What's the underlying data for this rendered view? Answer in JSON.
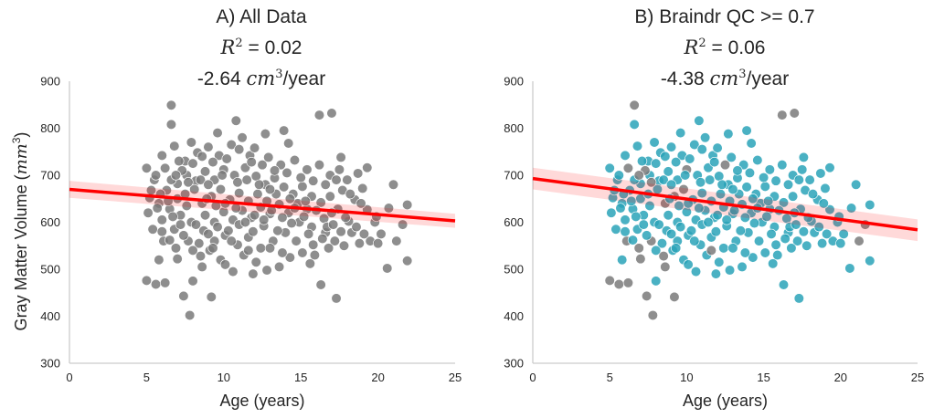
{
  "chart_data": [
    {
      "type": "scatter",
      "title_lines": [
        "A) All Data",
        "= 0.02",
        "-2.64",
        "/year"
      ],
      "r2_symbol": "R",
      "r2_exp": "2",
      "unit_symbol": "cm",
      "unit_exp": "3",
      "xlabel": "Age (years)",
      "ylabel_text": "Gray Matter Volume (",
      "ylabel_unit": "mm",
      "ylabel_exp": "3",
      "ylabel_close": ")",
      "xlim": [
        0,
        25
      ],
      "ylim": [
        300,
        900
      ],
      "xticks": [
        "0",
        "5",
        "10",
        "15",
        "20",
        "25"
      ],
      "yticks": [
        "300",
        "400",
        "500",
        "600",
        "700",
        "800",
        "900"
      ],
      "grid": false,
      "fit": {
        "x": [
          0,
          25
        ],
        "y": [
          670,
          603
        ],
        "ci_lo": [
          652,
          588
        ],
        "ci_hi": [
          688,
          618
        ],
        "color": "#ff0000"
      },
      "colors": {
        "all": "#7a7a7a",
        "pass": "#7a7a7a"
      }
    },
    {
      "type": "scatter",
      "title_lines": [
        "B) Braindr QC >= 0.7",
        "= 0.06",
        "-4.38",
        "/year"
      ],
      "r2_symbol": "R",
      "r2_exp": "2",
      "unit_symbol": "cm",
      "unit_exp": "3",
      "xlabel": "Age (years)",
      "ylabel_text": "",
      "xlim": [
        0,
        25
      ],
      "ylim": [
        300,
        900
      ],
      "xticks": [
        "0",
        "5",
        "10",
        "15",
        "20",
        "25"
      ],
      "yticks": [
        "300",
        "400",
        "500",
        "600",
        "700",
        "800",
        "900"
      ],
      "grid": false,
      "fit": {
        "x": [
          0,
          25
        ],
        "y": [
          693,
          584
        ],
        "ci_lo": [
          670,
          560
        ],
        "ci_hi": [
          716,
          606
        ],
        "color": "#ff0000"
      },
      "colors": {
        "all": "#7a7a7a",
        "pass": "#2aa3b8"
      },
      "qc_threshold": 0.7
    }
  ],
  "points": [
    {
      "x": 6.6,
      "y": 849
    },
    {
      "x": 6.6,
      "y": 808
    },
    {
      "x": 7.8,
      "y": 402
    },
    {
      "x": 7.4,
      "y": 443
    },
    {
      "x": 9.2,
      "y": 441
    },
    {
      "x": 5.0,
      "y": 476
    },
    {
      "x": 5.6,
      "y": 468
    },
    {
      "x": 6.2,
      "y": 471
    },
    {
      "x": 8.0,
      "y": 475
    },
    {
      "x": 10.8,
      "y": 816
    },
    {
      "x": 16.2,
      "y": 828
    },
    {
      "x": 17.0,
      "y": 832
    },
    {
      "x": 17.3,
      "y": 438
    },
    {
      "x": 16.3,
      "y": 467
    },
    {
      "x": 20.6,
      "y": 502
    },
    {
      "x": 21.9,
      "y": 518
    },
    {
      "x": 21.2,
      "y": 560
    },
    {
      "x": 21.6,
      "y": 595
    },
    {
      "x": 20.7,
      "y": 630
    },
    {
      "x": 21.0,
      "y": 680
    },
    {
      "x": 21.9,
      "y": 637
    },
    {
      "x": 13.9,
      "y": 795
    },
    {
      "x": 12.7,
      "y": 788
    },
    {
      "x": 9.6,
      "y": 790
    },
    {
      "x": 11.7,
      "y": 742
    },
    {
      "x": 14.2,
      "y": 768
    },
    {
      "x": 17.6,
      "y": 738
    },
    {
      "x": 19.3,
      "y": 716
    },
    {
      "x": 18.7,
      "y": 704
    },
    {
      "x": 17.5,
      "y": 712
    },
    {
      "x": 18.0,
      "y": 690
    },
    {
      "x": 19.0,
      "y": 672
    },
    {
      "x": 19.8,
      "y": 600
    },
    {
      "x": 20.2,
      "y": 575
    },
    {
      "x": 18.8,
      "y": 555
    },
    {
      "x": 18.1,
      "y": 602
    },
    {
      "x": 17.2,
      "y": 560
    },
    {
      "x": 16.6,
      "y": 578
    },
    {
      "x": 15.8,
      "y": 552
    },
    {
      "x": 15.1,
      "y": 535
    },
    {
      "x": 14.3,
      "y": 525
    },
    {
      "x": 13.6,
      "y": 505
    },
    {
      "x": 12.8,
      "y": 498
    },
    {
      "x": 12.1,
      "y": 515
    },
    {
      "x": 11.3,
      "y": 530
    },
    {
      "x": 10.6,
      "y": 495
    },
    {
      "x": 9.8,
      "y": 520
    },
    {
      "x": 9.1,
      "y": 540
    },
    {
      "x": 8.5,
      "y": 528
    },
    {
      "x": 7.7,
      "y": 560
    },
    {
      "x": 6.9,
      "y": 545
    },
    {
      "x": 6.1,
      "y": 560
    },
    {
      "x": 5.4,
      "y": 585
    },
    {
      "x": 5.1,
      "y": 620
    },
    {
      "x": 5.2,
      "y": 652
    },
    {
      "x": 5.5,
      "y": 690
    },
    {
      "x": 5.0,
      "y": 715
    },
    {
      "x": 6.0,
      "y": 742
    },
    {
      "x": 6.8,
      "y": 762
    },
    {
      "x": 7.5,
      "y": 730
    },
    {
      "x": 8.3,
      "y": 748
    },
    {
      "x": 9.0,
      "y": 760
    },
    {
      "x": 9.7,
      "y": 742
    },
    {
      "x": 10.5,
      "y": 765
    },
    {
      "x": 11.2,
      "y": 780
    },
    {
      "x": 12.0,
      "y": 758
    },
    {
      "x": 12.9,
      "y": 738
    },
    {
      "x": 13.7,
      "y": 722
    },
    {
      "x": 14.6,
      "y": 732
    },
    {
      "x": 15.4,
      "y": 712
    },
    {
      "x": 16.2,
      "y": 722
    },
    {
      "x": 16.9,
      "y": 700
    },
    {
      "x": 17.7,
      "y": 668
    },
    {
      "x": 18.5,
      "y": 648
    },
    {
      "x": 19.3,
      "y": 627
    },
    {
      "x": 19.9,
      "y": 612
    },
    {
      "x": 18.3,
      "y": 578
    },
    {
      "x": 17.4,
      "y": 628
    },
    {
      "x": 16.5,
      "y": 608
    },
    {
      "x": 15.7,
      "y": 590
    },
    {
      "x": 14.9,
      "y": 600
    },
    {
      "x": 14.0,
      "y": 578
    },
    {
      "x": 13.2,
      "y": 560
    },
    {
      "x": 12.4,
      "y": 545
    },
    {
      "x": 11.6,
      "y": 568
    },
    {
      "x": 10.9,
      "y": 552
    },
    {
      "x": 10.1,
      "y": 572
    },
    {
      "x": 9.4,
      "y": 560
    },
    {
      "x": 8.7,
      "y": 582
    },
    {
      "x": 7.9,
      "y": 600
    },
    {
      "x": 7.2,
      "y": 615
    },
    {
      "x": 6.5,
      "y": 628
    },
    {
      "x": 5.8,
      "y": 640
    },
    {
      "x": 6.3,
      "y": 668
    },
    {
      "x": 7.0,
      "y": 682
    },
    {
      "x": 7.6,
      "y": 700
    },
    {
      "x": 8.2,
      "y": 688
    },
    {
      "x": 8.8,
      "y": 708
    },
    {
      "x": 9.4,
      "y": 690
    },
    {
      "x": 10.0,
      "y": 712
    },
    {
      "x": 10.7,
      "y": 700
    },
    {
      "x": 11.4,
      "y": 716
    },
    {
      "x": 12.1,
      "y": 698
    },
    {
      "x": 12.7,
      "y": 680
    },
    {
      "x": 13.3,
      "y": 694
    },
    {
      "x": 13.9,
      "y": 675
    },
    {
      "x": 14.5,
      "y": 660
    },
    {
      "x": 15.1,
      "y": 676
    },
    {
      "x": 15.7,
      "y": 655
    },
    {
      "x": 16.3,
      "y": 642
    },
    {
      "x": 16.9,
      "y": 655
    },
    {
      "x": 15.4,
      "y": 628
    },
    {
      "x": 14.8,
      "y": 640
    },
    {
      "x": 14.2,
      "y": 620
    },
    {
      "x": 13.6,
      "y": 638
    },
    {
      "x": 13.0,
      "y": 618
    },
    {
      "x": 12.4,
      "y": 632
    },
    {
      "x": 11.8,
      "y": 610
    },
    {
      "x": 11.2,
      "y": 625
    },
    {
      "x": 10.6,
      "y": 605
    },
    {
      "x": 10.0,
      "y": 622
    },
    {
      "x": 9.4,
      "y": 600
    },
    {
      "x": 8.8,
      "y": 615
    },
    {
      "x": 8.2,
      "y": 595
    },
    {
      "x": 7.6,
      "y": 635
    },
    {
      "x": 7.0,
      "y": 650
    },
    {
      "x": 6.6,
      "y": 690
    },
    {
      "x": 7.3,
      "y": 710
    },
    {
      "x": 8.0,
      "y": 725
    },
    {
      "x": 8.6,
      "y": 640
    },
    {
      "x": 9.2,
      "y": 655
    },
    {
      "x": 9.8,
      "y": 670
    },
    {
      "x": 10.4,
      "y": 648
    },
    {
      "x": 11.0,
      "y": 662
    },
    {
      "x": 11.6,
      "y": 645
    },
    {
      "x": 12.2,
      "y": 660
    },
    {
      "x": 12.8,
      "y": 645
    },
    {
      "x": 13.4,
      "y": 660
    },
    {
      "x": 6.0,
      "y": 605
    },
    {
      "x": 6.8,
      "y": 585
    },
    {
      "x": 7.4,
      "y": 572
    },
    {
      "x": 8.4,
      "y": 555
    },
    {
      "x": 9.0,
      "y": 575
    },
    {
      "x": 9.6,
      "y": 590
    },
    {
      "x": 10.3,
      "y": 582
    },
    {
      "x": 11.0,
      "y": 595
    },
    {
      "x": 11.9,
      "y": 580
    },
    {
      "x": 12.6,
      "y": 592
    },
    {
      "x": 13.5,
      "y": 582
    },
    {
      "x": 14.4,
      "y": 598
    },
    {
      "x": 15.2,
      "y": 612
    },
    {
      "x": 16.0,
      "y": 625
    },
    {
      "x": 16.7,
      "y": 590
    },
    {
      "x": 17.8,
      "y": 550
    },
    {
      "x": 18.6,
      "y": 590
    },
    {
      "x": 19.5,
      "y": 560
    },
    {
      "x": 7.1,
      "y": 730
    },
    {
      "x": 7.9,
      "y": 770
    },
    {
      "x": 8.6,
      "y": 740
    },
    {
      "x": 9.3,
      "y": 728
    },
    {
      "x": 10.2,
      "y": 735
    },
    {
      "x": 11.0,
      "y": 755
    },
    {
      "x": 11.8,
      "y": 728
    },
    {
      "x": 12.5,
      "y": 722
    },
    {
      "x": 13.3,
      "y": 710
    },
    {
      "x": 14.1,
      "y": 705
    },
    {
      "x": 15.0,
      "y": 695
    },
    {
      "x": 15.8,
      "y": 688
    },
    {
      "x": 16.6,
      "y": 680
    },
    {
      "x": 17.3,
      "y": 690
    },
    {
      "x": 18.2,
      "y": 660
    },
    {
      "x": 5.3,
      "y": 668
    },
    {
      "x": 5.7,
      "y": 630
    },
    {
      "x": 5.9,
      "y": 660
    },
    {
      "x": 6.4,
      "y": 645
    },
    {
      "x": 6.7,
      "y": 612
    },
    {
      "x": 7.5,
      "y": 660
    },
    {
      "x": 8.1,
      "y": 670
    },
    {
      "x": 8.5,
      "y": 690
    },
    {
      "x": 9.0,
      "y": 680
    },
    {
      "x": 9.5,
      "y": 635
    },
    {
      "x": 10.1,
      "y": 640
    },
    {
      "x": 10.8,
      "y": 630
    },
    {
      "x": 11.4,
      "y": 600
    },
    {
      "x": 12.0,
      "y": 615
    },
    {
      "x": 12.6,
      "y": 605
    },
    {
      "x": 13.1,
      "y": 625
    },
    {
      "x": 13.8,
      "y": 610
    },
    {
      "x": 14.6,
      "y": 630
    },
    {
      "x": 15.5,
      "y": 575
    },
    {
      "x": 16.4,
      "y": 565
    },
    {
      "x": 17.1,
      "y": 595
    },
    {
      "x": 5.6,
      "y": 700
    },
    {
      "x": 6.2,
      "y": 715
    },
    {
      "x": 6.9,
      "y": 700
    },
    {
      "x": 7.7,
      "y": 685
    },
    {
      "x": 8.9,
      "y": 650
    },
    {
      "x": 9.9,
      "y": 700
    },
    {
      "x": 10.9,
      "y": 685
    },
    {
      "x": 11.5,
      "y": 690
    },
    {
      "x": 12.3,
      "y": 680
    },
    {
      "x": 13.0,
      "y": 670
    },
    {
      "x": 14.3,
      "y": 650
    },
    {
      "x": 15.3,
      "y": 645
    },
    {
      "x": 17.0,
      "y": 620
    },
    {
      "x": 17.9,
      "y": 610
    },
    {
      "x": 18.9,
      "y": 640
    },
    {
      "x": 6.0,
      "y": 580
    },
    {
      "x": 6.5,
      "y": 562
    },
    {
      "x": 7.2,
      "y": 595
    },
    {
      "x": 8.0,
      "y": 540
    },
    {
      "x": 9.3,
      "y": 545
    },
    {
      "x": 10.5,
      "y": 560
    },
    {
      "x": 11.6,
      "y": 540
    },
    {
      "x": 13.0,
      "y": 545
    },
    {
      "x": 14.7,
      "y": 560
    },
    {
      "x": 15.9,
      "y": 530
    },
    {
      "x": 16.8,
      "y": 545
    },
    {
      "x": 5.8,
      "y": 520
    },
    {
      "x": 7.0,
      "y": 522
    },
    {
      "x": 8.6,
      "y": 505
    },
    {
      "x": 10.1,
      "y": 510
    },
    {
      "x": 11.9,
      "y": 490
    },
    {
      "x": 13.8,
      "y": 535
    },
    {
      "x": 15.6,
      "y": 512
    },
    {
      "x": 17.6,
      "y": 580
    },
    {
      "x": 19.1,
      "y": 575
    },
    {
      "x": 20.0,
      "y": 555
    }
  ],
  "qc_fail_indices": [
    0,
    2,
    3,
    4,
    5,
    6,
    7,
    10,
    11,
    16,
    17,
    48,
    49,
    50,
    51,
    99,
    127,
    129,
    130,
    131,
    163,
    193,
    194,
    195,
    213,
    219,
    220,
    233,
    234,
    237
  ]
}
